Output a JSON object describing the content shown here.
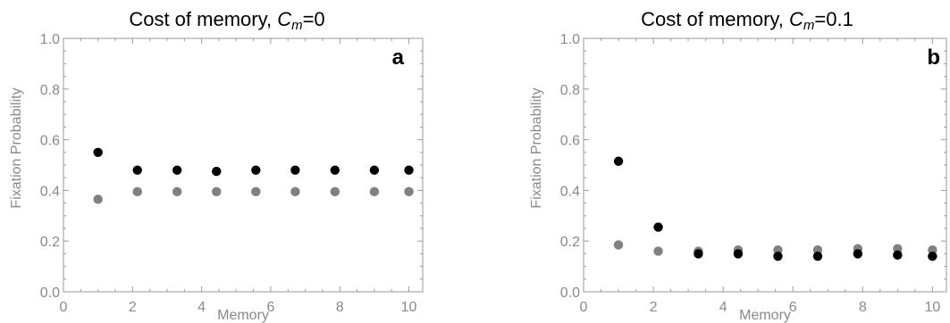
{
  "chart_data": [
    {
      "type": "scatter",
      "title": {
        "prefix": "Cost of memory, ",
        "var": "C",
        "sub": "m",
        "suffix": "=0"
      },
      "panel_label": "a",
      "xlabel": "Memory",
      "ylabel": "Fixation Probability",
      "xlim": [
        0,
        10.4
      ],
      "ylim": [
        0,
        1.0
      ],
      "xticks": [
        "0",
        "2",
        "4",
        "6",
        "8",
        "10"
      ],
      "yticks": [
        "0.0",
        "0.2",
        "0.4",
        "0.6",
        "0.8",
        "1.0"
      ],
      "series": [
        {
          "color": "#000000",
          "points": [
            [
              1,
              0.55
            ],
            [
              2.14,
              0.48
            ],
            [
              3.29,
              0.48
            ],
            [
              4.43,
              0.475
            ],
            [
              5.57,
              0.48
            ],
            [
              6.71,
              0.48
            ],
            [
              7.86,
              0.48
            ],
            [
              9.0,
              0.48
            ],
            [
              10.0,
              0.48
            ]
          ]
        },
        {
          "color": "#808080",
          "points": [
            [
              1,
              0.365
            ],
            [
              2.14,
              0.395
            ],
            [
              3.29,
              0.395
            ],
            [
              4.43,
              0.395
            ],
            [
              5.57,
              0.395
            ],
            [
              6.71,
              0.395
            ],
            [
              7.86,
              0.395
            ],
            [
              9.0,
              0.395
            ],
            [
              10.0,
              0.395
            ]
          ]
        }
      ]
    },
    {
      "type": "scatter",
      "title": {
        "prefix": "Cost of memory, ",
        "var": "C",
        "sub": "m",
        "suffix": "=0.1"
      },
      "panel_label": "b",
      "xlabel": "Memory",
      "ylabel": "Fixation Probability",
      "xlim": [
        0,
        10.4
      ],
      "ylim": [
        0,
        1.0
      ],
      "xticks": [
        "0",
        "2",
        "4",
        "6",
        "8",
        "10"
      ],
      "yticks": [
        "0.0",
        "0.2",
        "0.4",
        "0.6",
        "0.8",
        "1.0"
      ],
      "series": [
        {
          "color": "#808080",
          "points": [
            [
              1,
              0.185
            ],
            [
              2.14,
              0.16
            ],
            [
              3.29,
              0.16
            ],
            [
              4.43,
              0.165
            ],
            [
              5.57,
              0.165
            ],
            [
              6.71,
              0.165
            ],
            [
              7.86,
              0.17
            ],
            [
              9.0,
              0.17
            ],
            [
              10.0,
              0.165
            ]
          ]
        },
        {
          "color": "#000000",
          "points": [
            [
              1,
              0.515
            ],
            [
              2.14,
              0.255
            ],
            [
              3.29,
              0.15
            ],
            [
              4.43,
              0.15
            ],
            [
              5.57,
              0.14
            ],
            [
              6.71,
              0.14
            ],
            [
              7.86,
              0.15
            ],
            [
              9.0,
              0.145
            ],
            [
              10.0,
              0.14
            ]
          ]
        }
      ]
    }
  ]
}
